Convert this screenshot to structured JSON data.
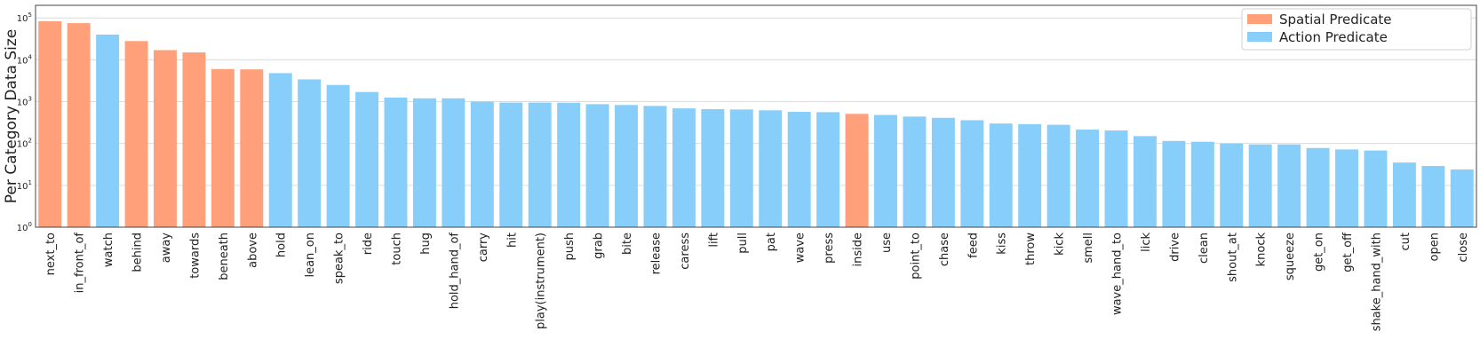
{
  "chart_data": {
    "type": "bar",
    "ylabel": "Per Category Data Size",
    "xlabel": "",
    "y_scale": "log",
    "ylim": [
      1,
      200000
    ],
    "y_ticks": [
      {
        "value": 1,
        "base": "10",
        "exp": "0"
      },
      {
        "value": 10,
        "base": "10",
        "exp": "1"
      },
      {
        "value": 100,
        "base": "10",
        "exp": "2"
      },
      {
        "value": 1000,
        "base": "10",
        "exp": "3"
      },
      {
        "value": 10000,
        "base": "10",
        "exp": "4"
      },
      {
        "value": 100000,
        "base": "10",
        "exp": "5"
      }
    ],
    "grid": "horizontal",
    "legend": {
      "placement": "top-right",
      "entries": [
        {
          "label": "Spatial Predicate",
          "color": "#ffa07a"
        },
        {
          "label": "Action Predicate",
          "color": "#87cefa"
        }
      ]
    },
    "categories": [
      "next_to",
      "in_front_of",
      "watch",
      "behind",
      "away",
      "towards",
      "beneath",
      "above",
      "hold",
      "lean_on",
      "speak_to",
      "ride",
      "touch",
      "hug",
      "hold_hand_of",
      "carry",
      "hit",
      "play(instrument)",
      "push",
      "grab",
      "bite",
      "release",
      "caress",
      "lift",
      "pull",
      "pat",
      "wave",
      "press",
      "inside",
      "use",
      "point_to",
      "chase",
      "feed",
      "kiss",
      "throw",
      "kick",
      "smell",
      "wave_hand_to",
      "lick",
      "drive",
      "clean",
      "shout_at",
      "knock",
      "squeeze",
      "get_on",
      "get_off",
      "shake_hand_with",
      "cut",
      "open",
      "close"
    ],
    "values": [
      83000,
      75000,
      40000,
      28000,
      17000,
      15000,
      6000,
      5900,
      4800,
      3400,
      2500,
      1700,
      1250,
      1200,
      1200,
      1000,
      950,
      950,
      940,
      870,
      830,
      790,
      690,
      660,
      650,
      620,
      570,
      560,
      510,
      480,
      440,
      410,
      360,
      300,
      290,
      280,
      215,
      205,
      150,
      115,
      110,
      100,
      95,
      95,
      78,
      72,
      68,
      35,
      29,
      24
    ],
    "group": [
      "spatial",
      "spatial",
      "action",
      "spatial",
      "spatial",
      "spatial",
      "spatial",
      "spatial",
      "action",
      "action",
      "action",
      "action",
      "action",
      "action",
      "action",
      "action",
      "action",
      "action",
      "action",
      "action",
      "action",
      "action",
      "action",
      "action",
      "action",
      "action",
      "action",
      "action",
      "spatial",
      "action",
      "action",
      "action",
      "action",
      "action",
      "action",
      "action",
      "action",
      "action",
      "action",
      "action",
      "action",
      "action",
      "action",
      "action",
      "action",
      "action",
      "action",
      "action",
      "action",
      "action"
    ],
    "colors": {
      "spatial": "#ffa07a",
      "action": "#87cefa"
    }
  }
}
